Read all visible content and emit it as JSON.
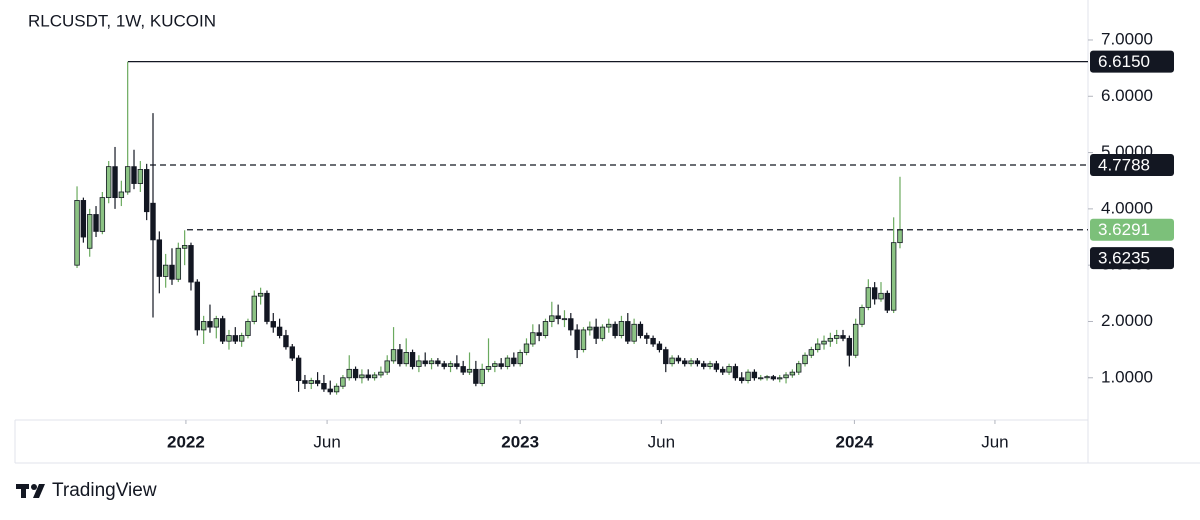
{
  "chart_data": {
    "type": "candlestick",
    "title": "RLCUSDT, 1W, KUCOIN",
    "up_color": "#8cc384",
    "down_color": "#131722",
    "ylim": [
      0.25,
      7.71
    ],
    "yticks": [
      {
        "value": 1,
        "label": "1.0000"
      },
      {
        "value": 2,
        "label": "2.0000"
      },
      {
        "value": 3,
        "label": "3.0000"
      },
      {
        "value": 4,
        "label": "4.0000"
      },
      {
        "value": 5,
        "label": "5.0000"
      },
      {
        "value": 6,
        "label": "6.0000"
      },
      {
        "value": 7,
        "label": "7.0000"
      }
    ],
    "xlim": [
      -9.8,
      159.7
    ],
    "xticks": [
      {
        "value": 17.2,
        "label": "2022"
      },
      {
        "value": 39.5,
        "label": "Jun"
      },
      {
        "value": 70.0,
        "label": "2023"
      },
      {
        "value": 92.3,
        "label": "Jun"
      },
      {
        "value": 122.8,
        "label": "2024"
      },
      {
        "value": 145.0,
        "label": "Jun"
      }
    ],
    "price_lines": [
      {
        "value": 6.615,
        "label": "6.6150",
        "style": "solid",
        "color": "#131722"
      },
      {
        "value": 4.7788,
        "label": "4.7788",
        "style": "dashed",
        "color": "#131722"
      },
      {
        "value": 3.6291,
        "label": "3.6291",
        "style": "dashed",
        "color": "#7cc07a"
      }
    ],
    "last_price": {
      "value": 3.6235,
      "label": "3.6235",
      "color": "#131722"
    },
    "candles": [
      [
        3.0,
        4.4,
        2.95,
        4.15
      ],
      [
        4.15,
        4.2,
        3.4,
        3.5
      ],
      [
        3.3,
        4.0,
        3.15,
        3.9
      ],
      [
        3.9,
        4.05,
        3.5,
        3.6
      ],
      [
        3.6,
        4.3,
        3.55,
        4.2
      ],
      [
        4.2,
        4.85,
        4.1,
        4.75
      ],
      [
        4.75,
        5.1,
        4.0,
        4.2
      ],
      [
        4.2,
        4.5,
        4.05,
        4.3
      ],
      [
        4.3,
        6.615,
        4.25,
        4.75
      ],
      [
        4.75,
        5.05,
        4.35,
        4.45
      ],
      [
        4.45,
        4.85,
        4.3,
        4.7
      ],
      [
        4.7,
        4.8,
        3.8,
        3.95
      ],
      [
        4.1,
        5.7,
        2.07,
        3.45
      ],
      [
        3.45,
        3.6,
        2.5,
        2.8
      ],
      [
        2.8,
        3.2,
        2.6,
        3.0
      ],
      [
        3.0,
        3.3,
        2.65,
        2.75
      ],
      [
        2.75,
        3.4,
        2.7,
        3.3
      ],
      [
        3.3,
        3.62,
        3.0,
        3.35
      ],
      [
        3.35,
        3.4,
        2.55,
        2.7
      ],
      [
        2.7,
        2.75,
        1.75,
        1.85
      ],
      [
        1.85,
        2.1,
        1.6,
        2.0
      ],
      [
        2.0,
        2.3,
        1.8,
        1.9
      ],
      [
        1.9,
        2.1,
        1.7,
        2.05
      ],
      [
        2.05,
        2.1,
        1.6,
        1.65
      ],
      [
        1.65,
        1.85,
        1.5,
        1.75
      ],
      [
        1.75,
        1.9,
        1.6,
        1.65
      ],
      [
        1.65,
        1.8,
        1.55,
        1.75
      ],
      [
        1.75,
        2.05,
        1.7,
        2.0
      ],
      [
        2.0,
        2.55,
        1.95,
        2.45
      ],
      [
        2.45,
        2.6,
        2.3,
        2.5
      ],
      [
        2.5,
        2.55,
        1.95,
        2.0
      ],
      [
        2.0,
        2.15,
        1.8,
        1.9
      ],
      [
        1.9,
        2.05,
        1.7,
        1.75
      ],
      [
        1.75,
        1.85,
        1.5,
        1.55
      ],
      [
        1.55,
        1.6,
        1.3,
        1.35
      ],
      [
        1.35,
        1.4,
        0.75,
        0.95
      ],
      [
        0.95,
        1.05,
        0.8,
        0.9
      ],
      [
        0.9,
        1.0,
        0.8,
        0.95
      ],
      [
        0.95,
        1.1,
        0.85,
        0.9
      ],
      [
        0.9,
        1.05,
        0.75,
        0.8
      ],
      [
        0.8,
        0.95,
        0.7,
        0.75
      ],
      [
        0.75,
        0.9,
        0.7,
        0.85
      ],
      [
        0.85,
        1.05,
        0.8,
        1.0
      ],
      [
        1.0,
        1.4,
        0.95,
        1.15
      ],
      [
        1.15,
        1.2,
        0.95,
        1.0
      ],
      [
        1.0,
        1.15,
        0.9,
        1.05
      ],
      [
        1.05,
        1.15,
        0.95,
        1.0
      ],
      [
        1.0,
        1.1,
        0.95,
        1.05
      ],
      [
        1.05,
        1.2,
        1.0,
        1.1
      ],
      [
        1.1,
        1.4,
        1.05,
        1.3
      ],
      [
        1.3,
        1.9,
        1.25,
        1.5
      ],
      [
        1.5,
        1.6,
        1.2,
        1.25
      ],
      [
        1.25,
        1.7,
        1.2,
        1.45
      ],
      [
        1.45,
        1.5,
        1.15,
        1.2
      ],
      [
        1.2,
        1.4,
        1.1,
        1.3
      ],
      [
        1.3,
        1.45,
        1.2,
        1.25
      ],
      [
        1.25,
        1.35,
        1.15,
        1.3
      ],
      [
        1.3,
        1.35,
        1.2,
        1.25
      ],
      [
        1.25,
        1.3,
        1.15,
        1.2
      ],
      [
        1.2,
        1.3,
        1.1,
        1.25
      ],
      [
        1.25,
        1.4,
        1.15,
        1.2
      ],
      [
        1.2,
        1.3,
        1.05,
        1.1
      ],
      [
        1.1,
        1.45,
        1.05,
        1.15
      ],
      [
        1.15,
        1.3,
        0.85,
        0.9
      ],
      [
        0.9,
        1.25,
        0.85,
        1.15
      ],
      [
        1.15,
        1.7,
        1.1,
        1.2
      ],
      [
        1.2,
        1.3,
        1.1,
        1.25
      ],
      [
        1.25,
        1.35,
        1.15,
        1.2
      ],
      [
        1.2,
        1.4,
        1.15,
        1.35
      ],
      [
        1.35,
        1.45,
        1.2,
        1.25
      ],
      [
        1.25,
        1.5,
        1.2,
        1.45
      ],
      [
        1.45,
        1.7,
        1.4,
        1.6
      ],
      [
        1.6,
        1.95,
        1.55,
        1.8
      ],
      [
        1.8,
        1.95,
        1.65,
        1.75
      ],
      [
        1.75,
        2.05,
        1.7,
        2.0
      ],
      [
        2.0,
        2.35,
        1.9,
        2.1
      ],
      [
        2.1,
        2.3,
        1.95,
        2.05
      ],
      [
        2.05,
        2.2,
        1.9,
        2.05
      ],
      [
        2.05,
        2.15,
        1.75,
        1.85
      ],
      [
        1.85,
        1.95,
        1.35,
        1.5
      ],
      [
        1.5,
        1.9,
        1.45,
        1.85
      ],
      [
        1.85,
        2.0,
        1.75,
        1.9
      ],
      [
        1.9,
        2.05,
        1.6,
        1.7
      ],
      [
        1.7,
        1.95,
        1.65,
        1.9
      ],
      [
        1.9,
        2.05,
        1.8,
        1.95
      ],
      [
        1.95,
        2.0,
        1.7,
        1.75
      ],
      [
        1.75,
        2.1,
        1.7,
        2.0
      ],
      [
        2.0,
        2.15,
        1.6,
        1.65
      ],
      [
        1.65,
        2.05,
        1.6,
        1.95
      ],
      [
        1.95,
        2.0,
        1.7,
        1.75
      ],
      [
        1.75,
        1.8,
        1.6,
        1.7
      ],
      [
        1.7,
        1.75,
        1.55,
        1.6
      ],
      [
        1.6,
        1.65,
        1.45,
        1.5
      ],
      [
        1.5,
        1.55,
        1.1,
        1.25
      ],
      [
        1.25,
        1.4,
        1.2,
        1.35
      ],
      [
        1.35,
        1.4,
        1.25,
        1.3
      ],
      [
        1.3,
        1.35,
        1.2,
        1.25
      ],
      [
        1.25,
        1.35,
        1.2,
        1.3
      ],
      [
        1.3,
        1.35,
        1.2,
        1.25
      ],
      [
        1.25,
        1.3,
        1.15,
        1.2
      ],
      [
        1.2,
        1.3,
        1.15,
        1.25
      ],
      [
        1.25,
        1.3,
        1.1,
        1.15
      ],
      [
        1.15,
        1.2,
        1.05,
        1.1
      ],
      [
        1.1,
        1.25,
        1.05,
        1.2
      ],
      [
        1.2,
        1.25,
        0.95,
        1.0
      ],
      [
        1.0,
        1.1,
        0.9,
        0.95
      ],
      [
        0.95,
        1.15,
        0.9,
        1.1
      ],
      [
        1.1,
        1.15,
        0.95,
        1.0
      ],
      [
        1.0,
        1.05,
        0.95,
        1.0
      ],
      [
        1.0,
        1.05,
        0.95,
        1.02
      ],
      [
        1.02,
        1.05,
        0.95,
        0.98
      ],
      [
        0.98,
        1.05,
        0.92,
        1.0
      ],
      [
        1.0,
        1.1,
        0.9,
        1.05
      ],
      [
        1.05,
        1.15,
        1.0,
        1.1
      ],
      [
        1.1,
        1.3,
        1.05,
        1.25
      ],
      [
        1.25,
        1.45,
        1.2,
        1.4
      ],
      [
        1.4,
        1.55,
        1.35,
        1.5
      ],
      [
        1.5,
        1.7,
        1.45,
        1.6
      ],
      [
        1.6,
        1.75,
        1.5,
        1.65
      ],
      [
        1.65,
        1.8,
        1.55,
        1.7
      ],
      [
        1.7,
        1.85,
        1.6,
        1.75
      ],
      [
        1.75,
        1.85,
        1.65,
        1.7
      ],
      [
        1.7,
        1.75,
        1.2,
        1.4
      ],
      [
        1.4,
        2.05,
        1.35,
        1.95
      ],
      [
        1.95,
        2.3,
        1.9,
        2.25
      ],
      [
        2.25,
        2.75,
        2.2,
        2.6
      ],
      [
        2.6,
        2.7,
        2.3,
        2.4
      ],
      [
        2.4,
        2.7,
        2.35,
        2.5
      ],
      [
        2.5,
        2.55,
        2.15,
        2.2
      ],
      [
        2.2,
        3.85,
        2.15,
        3.4
      ],
      [
        3.4,
        4.57,
        3.3,
        3.6291
      ]
    ]
  },
  "footer": {
    "brand": "TradingView"
  }
}
